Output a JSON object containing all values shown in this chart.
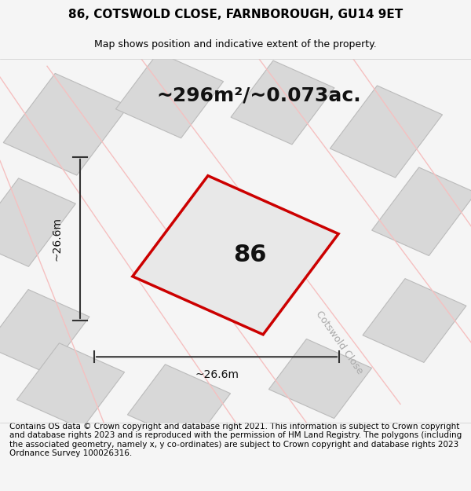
{
  "title_line1": "86, COTSWOLD CLOSE, FARNBOROUGH, GU14 9ET",
  "title_line2": "Map shows position and indicative extent of the property.",
  "footer_text": "Contains OS data © Crown copyright and database right 2021. This information is subject to Crown copyright and database rights 2023 and is reproduced with the permission of HM Land Registry. The polygons (including the associated geometry, namely x, y co-ordinates) are subject to Crown copyright and database rights 2023 Ordnance Survey 100026316.",
  "area_label": "~296m²/~0.073ac.",
  "property_number": "86",
  "dim_h": "~26.6m",
  "dim_w": "~26.6m",
  "road_label": "Cotswold Close",
  "bg_color": "#f5f5f5",
  "map_bg": "#f0f0f0",
  "plot_fill": "#e8e8e8",
  "plot_edge_color": "#cc0000",
  "neighbor_fill": "#d8d8d8",
  "neighbor_edge": "#bbbbbb",
  "road_line_color": "#f5c0c0",
  "dim_line_color": "#333333",
  "title_fontsize": 11,
  "subtitle_fontsize": 9,
  "area_fontsize": 18,
  "number_fontsize": 22,
  "footer_fontsize": 7.5
}
